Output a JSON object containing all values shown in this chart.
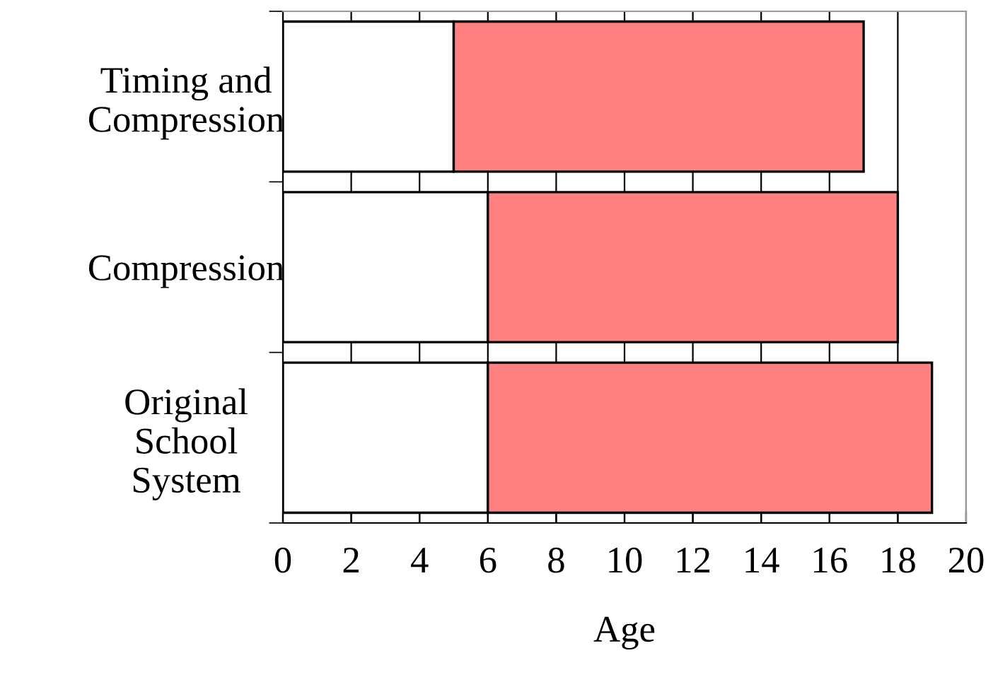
{
  "chart_data": {
    "type": "bar",
    "orientation": "horizontal",
    "stacked": true,
    "xlabel": "Age",
    "categories": [
      "Timing and\nCompression",
      "Compression",
      "Original\nSchool\nSystem"
    ],
    "series": [
      {
        "color": "#ffffff",
        "values": [
          5,
          6,
          6
        ]
      },
      {
        "color": "#ff8080",
        "values": [
          12,
          12,
          13
        ]
      }
    ],
    "xlim": [
      0,
      20
    ],
    "xticks": [
      0,
      2,
      4,
      6,
      8,
      10,
      12,
      14,
      16,
      18,
      20
    ],
    "grid": "x",
    "legend": false
  }
}
